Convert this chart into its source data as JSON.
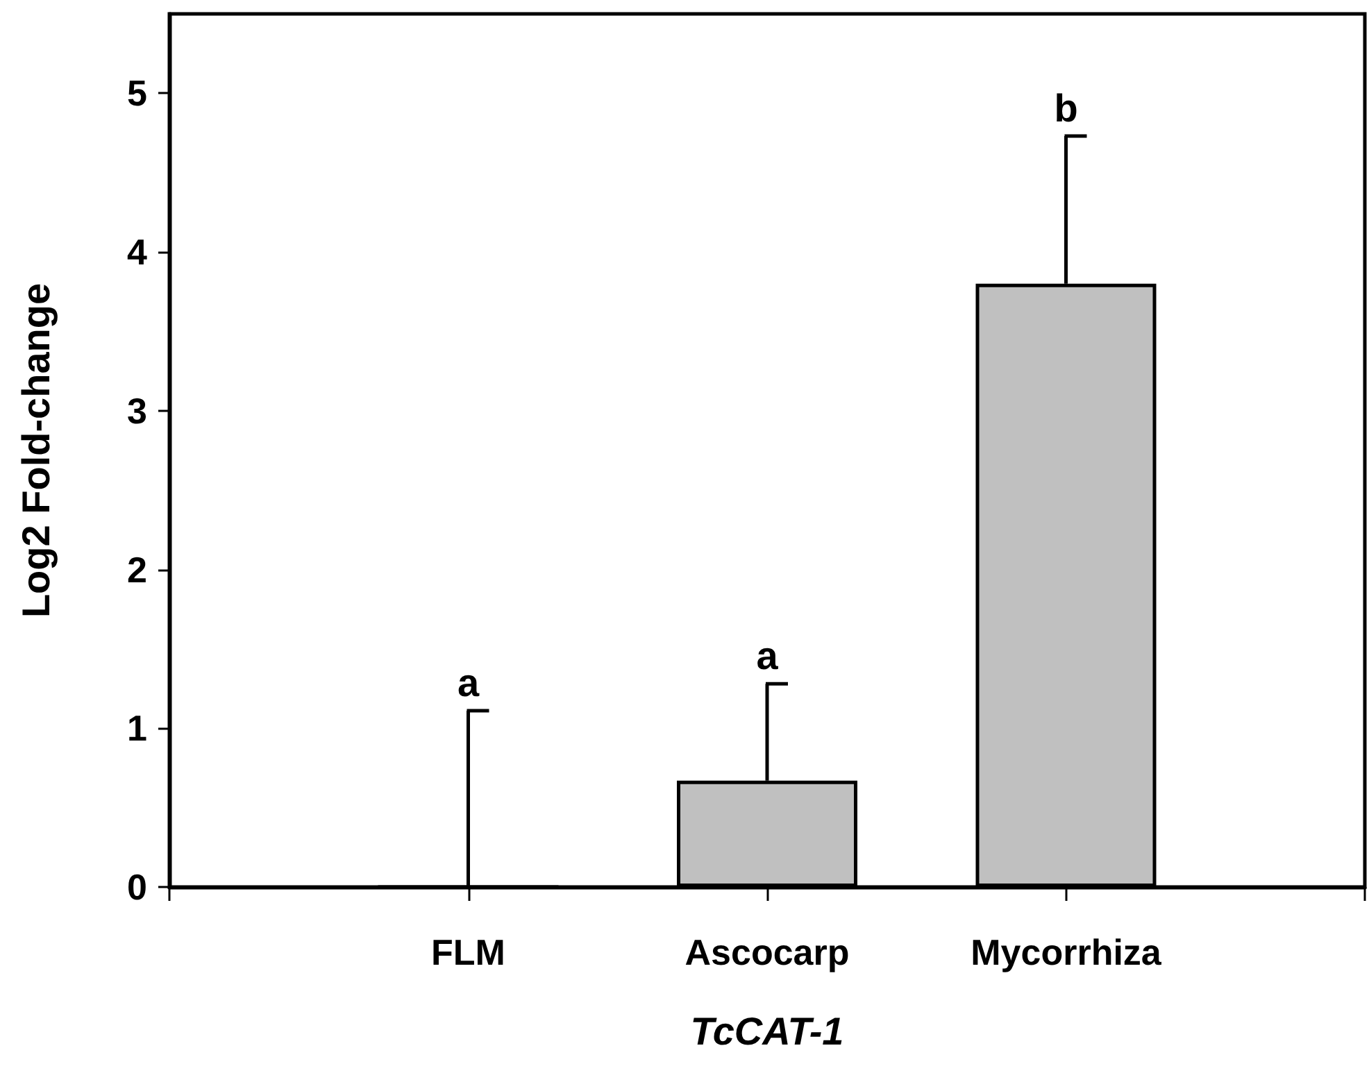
{
  "chart_data": {
    "type": "bar",
    "xlabel": "TcCAT-1",
    "ylabel": "Log2 Fold-change",
    "categories": [
      null,
      "FLM",
      "Ascocarp",
      "Mycorrhiza",
      null
    ],
    "values": [
      null,
      0,
      0.67,
      3.8,
      null
    ],
    "errors": [
      null,
      [
        0,
        1.11
      ],
      [
        0.67,
        1.28
      ],
      [
        3.8,
        4.73
      ],
      null
    ],
    "color": "#c0c0c0",
    "ylim": [
      0,
      5.5
    ],
    "yticks": [
      0,
      1,
      2,
      3,
      4,
      5
    ],
    "annotations": [
      {
        "text": "a",
        "x": "FLM",
        "y": 1.11
      },
      {
        "text": "a",
        "x": "Ascocarp",
        "y": 1.28
      },
      {
        "text": "b",
        "x": "Mycorrhiza",
        "y": 4.73
      }
    ]
  }
}
